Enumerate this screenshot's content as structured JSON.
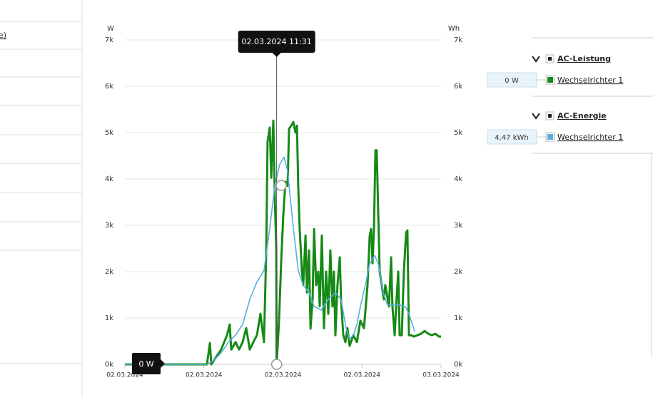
{
  "sidebar": {
    "items": [
      "e)"
    ]
  },
  "chart_data": {
    "type": "line",
    "ylabel": "W",
    "y2label": "Wh",
    "xlim": [
      0,
      24
    ],
    "xticks": [
      {
        "value": 0,
        "label": "02.03.2024"
      },
      {
        "value": 6,
        "label": "02.03.2024"
      },
      {
        "value": 12,
        "label": "02.03.2024"
      },
      {
        "value": 18,
        "label": "02.03.2024"
      },
      {
        "value": 24,
        "label": "03.03.2024"
      }
    ],
    "ylim": [
      0,
      7000
    ],
    "yticks": [
      {
        "value": 0,
        "label": "0k"
      },
      {
        "value": 1000,
        "label": "1k"
      },
      {
        "value": 2000,
        "label": "2k"
      },
      {
        "value": 3000,
        "label": "3k"
      },
      {
        "value": 4000,
        "label": "4k"
      },
      {
        "value": 5000,
        "label": "5k"
      },
      {
        "value": 6000,
        "label": "6k"
      },
      {
        "value": 7000,
        "label": "7k"
      }
    ],
    "y2lim": [
      0,
      7000
    ],
    "y2ticks": [
      {
        "value": 0,
        "label": "0k"
      },
      {
        "value": 1000,
        "label": "1k"
      },
      {
        "value": 2000,
        "label": "2k"
      },
      {
        "value": 3000,
        "label": "3k"
      },
      {
        "value": 4000,
        "label": "4k"
      },
      {
        "value": 5000,
        "label": "5k"
      },
      {
        "value": 6000,
        "label": "6k"
      },
      {
        "value": 7000,
        "label": "7k"
      }
    ],
    "grid": true,
    "tooltip": {
      "label": "02.03.2024 11:31",
      "value_label": "0 W",
      "x": 11.52
    },
    "series": [
      {
        "group": "AC-Leistung",
        "name": "Wechselrichter 1",
        "readout": "0 W",
        "color": "#158a15",
        "x": [
          0,
          6.23,
          6.45,
          6.56,
          6.77,
          7.31,
          7.75,
          7.96,
          8.07,
          8.4,
          8.67,
          8.94,
          9.21,
          9.48,
          9.75,
          10.02,
          10.29,
          10.56,
          10.73,
          10.83,
          11.0,
          11.11,
          11.27,
          11.38,
          11.49,
          11.52,
          11.7,
          11.86,
          12.03,
          12.19,
          12.35,
          12.46,
          12.62,
          12.79,
          12.95,
          13.06,
          13.16,
          13.27,
          13.44,
          13.54,
          13.71,
          13.82,
          13.98,
          14.09,
          14.25,
          14.36,
          14.52,
          14.68,
          14.79,
          14.95,
          15.11,
          15.28,
          15.44,
          15.6,
          15.76,
          15.87,
          15.98,
          16.14,
          16.31,
          16.41,
          16.58,
          16.74,
          16.9,
          17.06,
          17.34,
          17.61,
          17.88,
          18.15,
          18.42,
          18.58,
          18.69,
          18.8,
          18.91,
          19.02,
          19.12,
          19.23,
          19.34,
          19.5,
          19.66,
          19.77,
          20.05,
          20.21,
          20.31,
          20.48,
          20.59,
          20.75,
          20.86,
          21.02,
          21.18,
          21.35,
          21.45,
          21.56,
          21.72,
          21.94,
          22.21,
          22.48,
          22.76,
          23.03,
          23.3,
          23.57,
          23.84,
          24.0
        ],
        "values": [
          0,
          0,
          460,
          0,
          90,
          320,
          630,
          860,
          320,
          480,
          320,
          480,
          780,
          320,
          480,
          630,
          1090,
          480,
          2480,
          4800,
          5110,
          4030,
          5260,
          3570,
          2480,
          0,
          940,
          2180,
          3260,
          3940,
          3850,
          5080,
          5150,
          5230,
          5000,
          5150,
          3850,
          2920,
          2000,
          1710,
          2780,
          1550,
          2460,
          770,
          1390,
          2920,
          1710,
          2000,
          1250,
          2780,
          780,
          2000,
          1090,
          2460,
          1250,
          2000,
          630,
          1710,
          2310,
          1400,
          630,
          480,
          780,
          400,
          630,
          480,
          940,
          780,
          1710,
          2770,
          2920,
          2180,
          2920,
          4620,
          4620,
          3260,
          2000,
          1710,
          1400,
          1710,
          1250,
          2310,
          1250,
          630,
          1250,
          2000,
          630,
          630,
          2000,
          2850,
          2890,
          630,
          630,
          600,
          630,
          660,
          720,
          660,
          630,
          660,
          600,
          600
        ]
      },
      {
        "group": "AC-Energie",
        "name": "Wechselrichter 1",
        "readout": "4,47 kWh",
        "color": "#5aaee0",
        "axis": "y2",
        "x": [
          0,
          6.23,
          6.77,
          7.31,
          7.86,
          8.4,
          8.94,
          9.48,
          10.02,
          10.56,
          11.0,
          11.38,
          11.76,
          12.08,
          12.35,
          12.73,
          13.16,
          13.54,
          13.98,
          14.36,
          14.9,
          15.44,
          15.98,
          16.41,
          16.79,
          17.06,
          17.34,
          17.61,
          17.88,
          18.26,
          18.58,
          18.96,
          19.23,
          19.61,
          19.94,
          20.32,
          20.86,
          21.29,
          21.56,
          21.83,
          22.0
        ],
        "values": [
          0,
          0,
          90,
          250,
          480,
          630,
          860,
          1400,
          1780,
          2020,
          2940,
          3860,
          4320,
          4470,
          4170,
          3090,
          2020,
          1710,
          1550,
          1250,
          1170,
          1400,
          1550,
          1400,
          780,
          550,
          630,
          860,
          1250,
          1710,
          2170,
          2350,
          2170,
          1550,
          1280,
          1280,
          1280,
          1250,
          1090,
          860,
          710
        ]
      }
    ]
  }
}
